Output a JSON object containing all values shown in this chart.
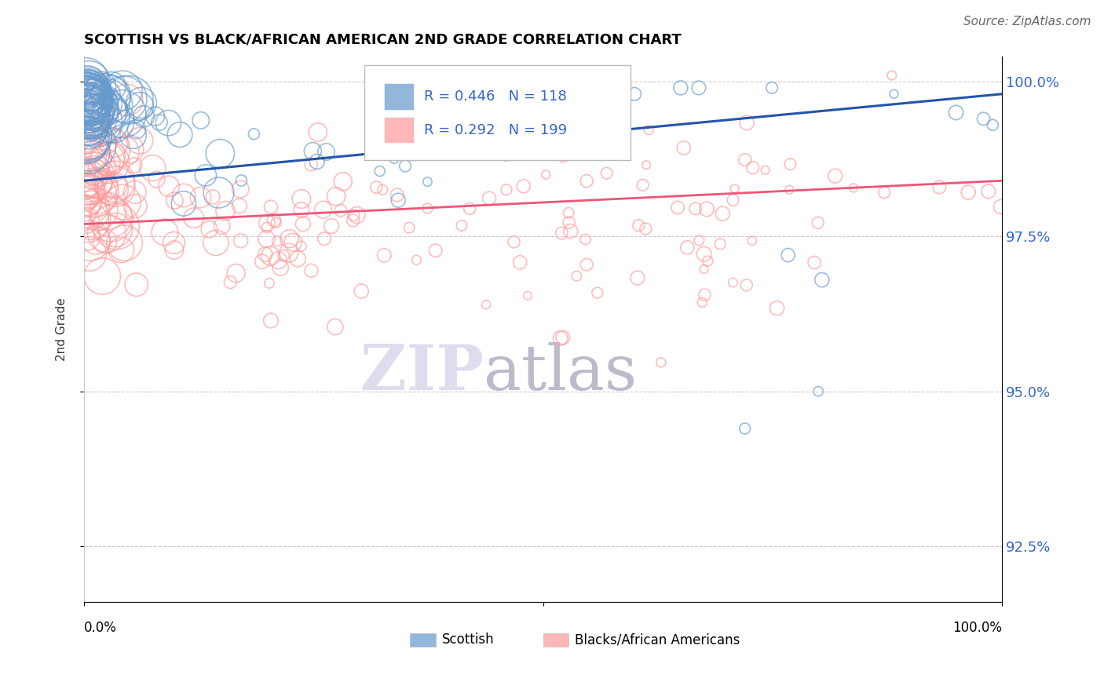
{
  "title": "SCOTTISH VS BLACK/AFRICAN AMERICAN 2ND GRADE CORRELATION CHART",
  "source": "Source: ZipAtlas.com",
  "ylabel": "2nd Grade",
  "blue_R": 0.446,
  "blue_N": 118,
  "pink_R": 0.292,
  "pink_N": 199,
  "blue_color": "#6699CC",
  "pink_color": "#FF9999",
  "blue_line_color": "#2255AA",
  "pink_line_color": "#EE5577",
  "legend_text_color": "#3366CC",
  "xlim": [
    0.0,
    1.0
  ],
  "ylim": [
    0.916,
    1.004
  ],
  "yticks": [
    0.925,
    0.95,
    0.975,
    1.0
  ],
  "ytick_labels": [
    "92.5%",
    "95.0%",
    "97.5%",
    "100.0%"
  ]
}
